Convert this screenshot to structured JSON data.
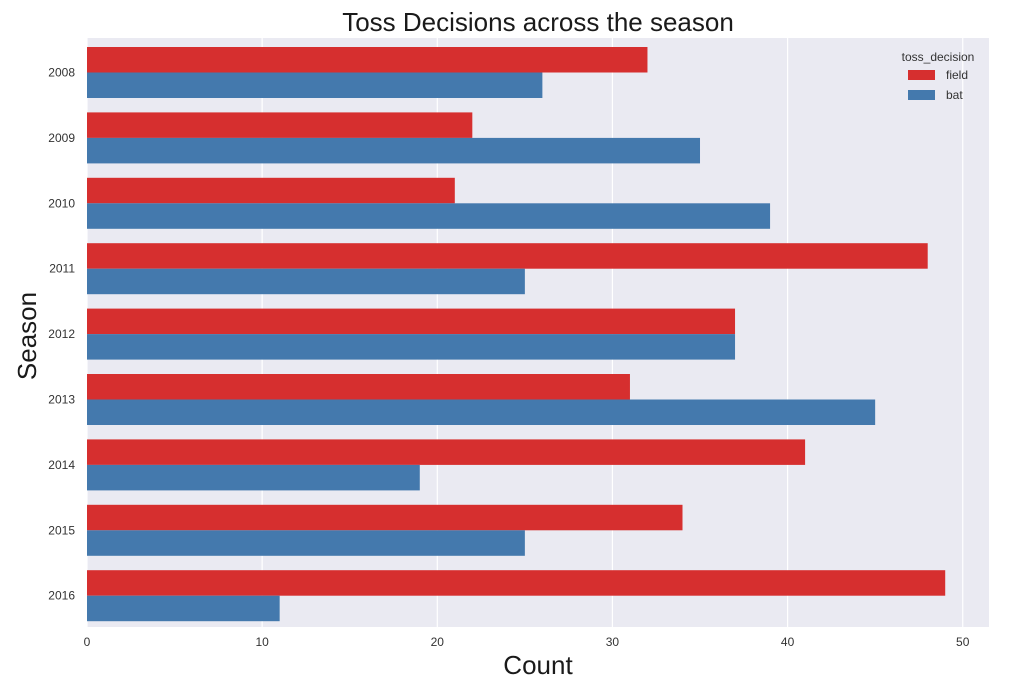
{
  "chart_data": {
    "type": "bar",
    "orientation": "horizontal",
    "title": "Toss Decisions across the season",
    "xlabel": "Count",
    "ylabel": "Season",
    "xlim": [
      0,
      51.5
    ],
    "x_ticks": [
      0,
      10,
      20,
      30,
      40,
      50
    ],
    "categories": [
      "2008",
      "2009",
      "2010",
      "2011",
      "2012",
      "2013",
      "2014",
      "2015",
      "2016"
    ],
    "series": [
      {
        "name": "field",
        "color": "#d62f2f",
        "values": [
          32,
          22,
          21,
          48,
          37,
          31,
          41,
          34,
          49
        ]
      },
      {
        "name": "bat",
        "color": "#4479ad",
        "values": [
          26,
          35,
          39,
          25,
          37,
          45,
          19,
          25,
          11
        ]
      }
    ],
    "legend": {
      "title": "toss_decision",
      "position": "top-right"
    },
    "grid": true,
    "background": "#eaeaf2"
  }
}
